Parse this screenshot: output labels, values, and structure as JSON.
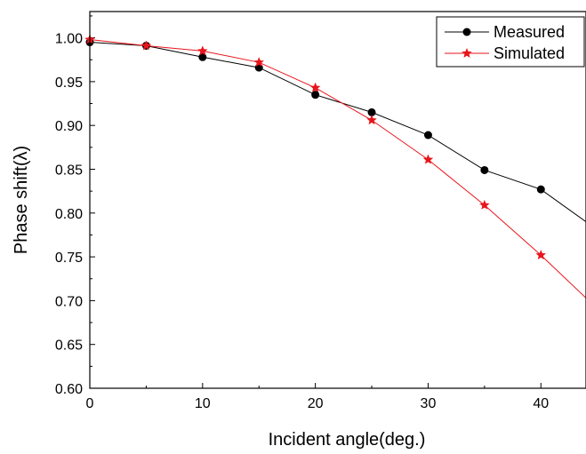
{
  "chart_data": {
    "type": "line",
    "xlabel": "Incident angle(deg.)",
    "ylabel": "Phase shift(λ)",
    "xlim": [
      0,
      44
    ],
    "ylim": [
      0.6,
      1.03
    ],
    "x_ticks": [
      0,
      10,
      20,
      30,
      40
    ],
    "x_tick_labels": [
      "0",
      "10",
      "20",
      "30",
      "40"
    ],
    "y_ticks": [
      0.6,
      0.65,
      0.7,
      0.75,
      0.8,
      0.85,
      0.9,
      0.95,
      1.0
    ],
    "y_tick_labels": [
      "0.60",
      "0.65",
      "0.70",
      "0.75",
      "0.80",
      "0.85",
      "0.90",
      "0.95",
      "1.00"
    ],
    "grid": false,
    "legend_position": "top-right",
    "series": [
      {
        "name": "Measured",
        "color": "#000000",
        "marker": "circle",
        "x": [
          0,
          5,
          10,
          15,
          20,
          25,
          30,
          35,
          40,
          44
        ],
        "y": [
          0.995,
          0.991,
          0.978,
          0.966,
          0.935,
          0.915,
          0.889,
          0.849,
          0.827,
          0.79
        ],
        "marker_count": 9
      },
      {
        "name": "Simulated",
        "color": "#e8151b",
        "marker": "star",
        "x": [
          0,
          5,
          10,
          15,
          20,
          25,
          30,
          35,
          40,
          44
        ],
        "y": [
          0.998,
          0.991,
          0.985,
          0.972,
          0.943,
          0.906,
          0.861,
          0.809,
          0.752,
          0.703
        ],
        "marker_count": 9
      }
    ]
  }
}
